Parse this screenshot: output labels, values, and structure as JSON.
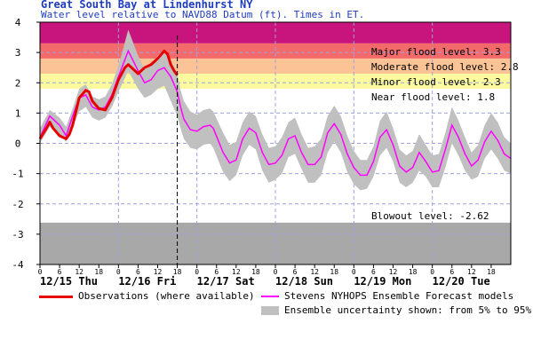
{
  "chart_data": {
    "type": "line",
    "title": "Great South Bay at Lindenhurst NY",
    "subtitle": "Water level relative to NAVD88 Datum (ft). Times in ET.",
    "ylim": [
      -4,
      4
    ],
    "y_ticks": [
      "4",
      "3",
      "2",
      "1",
      "0",
      "-1",
      "-2",
      "-3",
      "-4"
    ],
    "x_range_hours": [
      0,
      144
    ],
    "x_hour_ticks": [
      "0",
      "6",
      "12",
      "18",
      "0",
      "6",
      "12",
      "18",
      "0",
      "6",
      "12",
      "18",
      "0",
      "6",
      "12",
      "18",
      "0",
      "6",
      "12",
      "18",
      "0",
      "6",
      "12",
      "18"
    ],
    "day_labels": [
      "12/15 Thu",
      "12/16 Fri",
      "12/17 Sat",
      "12/18 Sun",
      "12/19 Mon",
      "12/20 Tue"
    ],
    "now_hour": 42,
    "thresholds": [
      {
        "label": "Major flood level: 3.3",
        "value": 3.3,
        "color": "#c8157e"
      },
      {
        "label": "Moderate flood level: 2.8",
        "value": 2.8,
        "color": "#f26a6a"
      },
      {
        "label": "Minor flood level: 2.3",
        "value": 2.3,
        "color": "#fcc496"
      },
      {
        "label": "Near flood level: 1.8",
        "value": 1.8,
        "color": "#fbfa9f"
      },
      {
        "label": "Blowout level: -2.62",
        "value": -2.62,
        "color": "#a8a8a8"
      }
    ],
    "series": [
      {
        "name": "Observations (where available)",
        "color": "#e60000",
        "x": [
          0,
          2,
          3,
          4,
          6,
          8,
          9,
          10,
          12,
          14,
          15,
          16,
          18,
          20,
          22,
          24,
          26,
          27,
          28,
          30,
          32,
          34,
          36,
          38,
          39,
          40,
          41,
          42
        ],
        "y": [
          0.15,
          0.5,
          0.7,
          0.5,
          0.25,
          0.15,
          0.3,
          0.6,
          1.5,
          1.75,
          1.7,
          1.4,
          1.15,
          1.1,
          1.5,
          2.1,
          2.5,
          2.6,
          2.5,
          2.3,
          2.5,
          2.6,
          2.8,
          3.05,
          2.95,
          2.6,
          2.4,
          2.25
        ]
      },
      {
        "name": "Stevens NYHOPS Ensemble Forecast models",
        "color": "#ff00ff",
        "x": [
          0,
          3,
          6,
          8,
          10,
          12,
          14,
          16,
          18,
          20,
          22,
          24,
          27,
          30,
          32,
          34,
          36,
          38,
          40,
          42,
          43,
          44,
          46,
          48,
          50,
          52,
          53,
          56,
          58,
          60,
          62,
          64,
          66,
          68,
          70,
          72,
          74,
          76,
          78,
          80,
          82,
          84,
          86,
          88,
          90,
          92,
          94,
          96,
          98,
          100,
          102,
          104,
          106,
          108,
          110,
          112,
          114,
          116,
          118,
          120,
          122,
          124,
          126,
          128,
          130,
          132,
          134,
          136,
          138,
          140,
          142,
          144
        ],
        "y": [
          0.2,
          0.9,
          0.6,
          0.25,
          0.9,
          1.5,
          1.6,
          1.2,
          1.1,
          1.2,
          1.6,
          2.2,
          3.05,
          2.4,
          2.0,
          2.1,
          2.4,
          2.5,
          2.2,
          1.7,
          1.2,
          0.8,
          0.45,
          0.4,
          0.55,
          0.6,
          0.5,
          -0.3,
          -0.65,
          -0.55,
          0.15,
          0.5,
          0.35,
          -0.3,
          -0.7,
          -0.65,
          -0.4,
          0.15,
          0.25,
          -0.3,
          -0.7,
          -0.7,
          -0.45,
          0.35,
          0.65,
          0.3,
          -0.35,
          -0.8,
          -1.05,
          -1.05,
          -0.6,
          0.2,
          0.45,
          -0.05,
          -0.75,
          -0.95,
          -0.8,
          -0.3,
          -0.6,
          -0.95,
          -0.9,
          -0.2,
          0.6,
          0.2,
          -0.35,
          -0.75,
          -0.55,
          0.05,
          0.4,
          0.1,
          -0.35,
          -0.5
        ]
      }
    ],
    "band": {
      "name": "Ensemble uncertainty shown: from 5% to 95%.",
      "color": "#c0c0c0",
      "x": [
        0,
        3,
        6,
        8,
        10,
        12,
        14,
        16,
        18,
        20,
        22,
        24,
        27,
        30,
        32,
        34,
        36,
        38,
        40,
        42,
        43,
        44,
        46,
        48,
        50,
        52,
        53,
        56,
        58,
        60,
        62,
        64,
        66,
        68,
        70,
        72,
        74,
        76,
        78,
        80,
        82,
        84,
        86,
        88,
        90,
        92,
        94,
        96,
        98,
        100,
        102,
        104,
        106,
        108,
        110,
        112,
        114,
        116,
        118,
        120,
        122,
        124,
        126,
        128,
        130,
        132,
        134,
        136,
        138,
        140,
        142,
        144
      ],
      "low": [
        0.0,
        0.55,
        0.3,
        0.05,
        0.55,
        1.05,
        1.2,
        0.85,
        0.75,
        0.85,
        1.2,
        1.7,
        2.4,
        1.8,
        1.5,
        1.6,
        1.8,
        1.9,
        1.4,
        0.9,
        0.5,
        0.15,
        -0.15,
        -0.2,
        -0.05,
        0.0,
        -0.15,
        -0.95,
        -1.25,
        -1.05,
        -0.4,
        -0.05,
        -0.2,
        -0.9,
        -1.3,
        -1.2,
        -1.0,
        -0.45,
        -0.35,
        -0.85,
        -1.3,
        -1.3,
        -1.05,
        -0.3,
        0.05,
        -0.3,
        -0.95,
        -1.35,
        -1.55,
        -1.5,
        -1.1,
        -0.4,
        -0.15,
        -0.6,
        -1.3,
        -1.45,
        -1.3,
        -0.9,
        -1.1,
        -1.45,
        -1.45,
        -0.8,
        0.0,
        -0.4,
        -0.9,
        -1.2,
        -1.1,
        -0.5,
        -0.2,
        -0.5,
        -0.9,
        -1.0
      ],
      "high": [
        0.5,
        1.1,
        0.85,
        0.55,
        1.15,
        1.8,
        1.95,
        1.55,
        1.45,
        1.55,
        1.95,
        2.55,
        3.75,
        2.9,
        2.45,
        2.55,
        2.9,
        3.0,
        2.75,
        2.3,
        1.75,
        1.4,
        1.05,
        0.95,
        1.1,
        1.15,
        1.05,
        0.35,
        -0.05,
        0.05,
        0.7,
        1.05,
        0.9,
        0.3,
        -0.15,
        -0.1,
        0.2,
        0.7,
        0.85,
        0.3,
        -0.15,
        -0.1,
        0.15,
        0.9,
        1.25,
        0.9,
        0.25,
        -0.25,
        -0.55,
        -0.55,
        -0.1,
        0.75,
        1.05,
        0.5,
        -0.2,
        -0.4,
        -0.25,
        0.3,
        -0.05,
        -0.4,
        -0.35,
        0.35,
        1.2,
        0.75,
        0.2,
        -0.3,
        -0.05,
        0.6,
        1.0,
        0.7,
        0.2,
        0.0
      ]
    },
    "grid": true
  }
}
